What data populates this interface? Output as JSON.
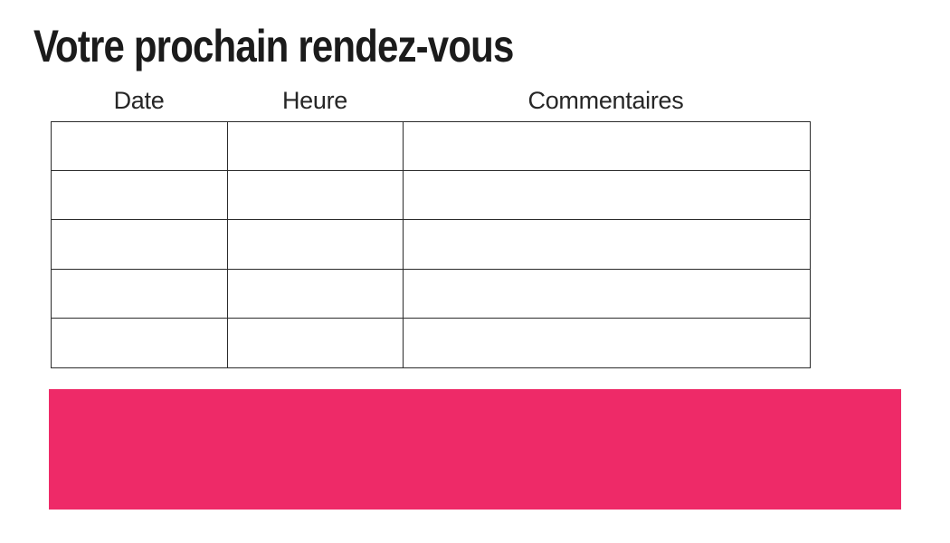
{
  "page": {
    "title": "Votre prochain rendez-vous"
  },
  "table": {
    "headers": [
      "Date",
      "Heure",
      "Commentaires"
    ],
    "rows": [
      [
        "",
        "",
        ""
      ],
      [
        "",
        "",
        ""
      ],
      [
        "",
        "",
        ""
      ],
      [
        "",
        "",
        ""
      ],
      [
        "",
        "",
        ""
      ]
    ]
  },
  "banner": {
    "label": ""
  },
  "colors": {
    "accent_pink": "#EE2A68",
    "table_border": "#2B2B2B",
    "title_text": "#1B1B1B",
    "header_text": "#262626",
    "background": "#FFFFFF"
  }
}
